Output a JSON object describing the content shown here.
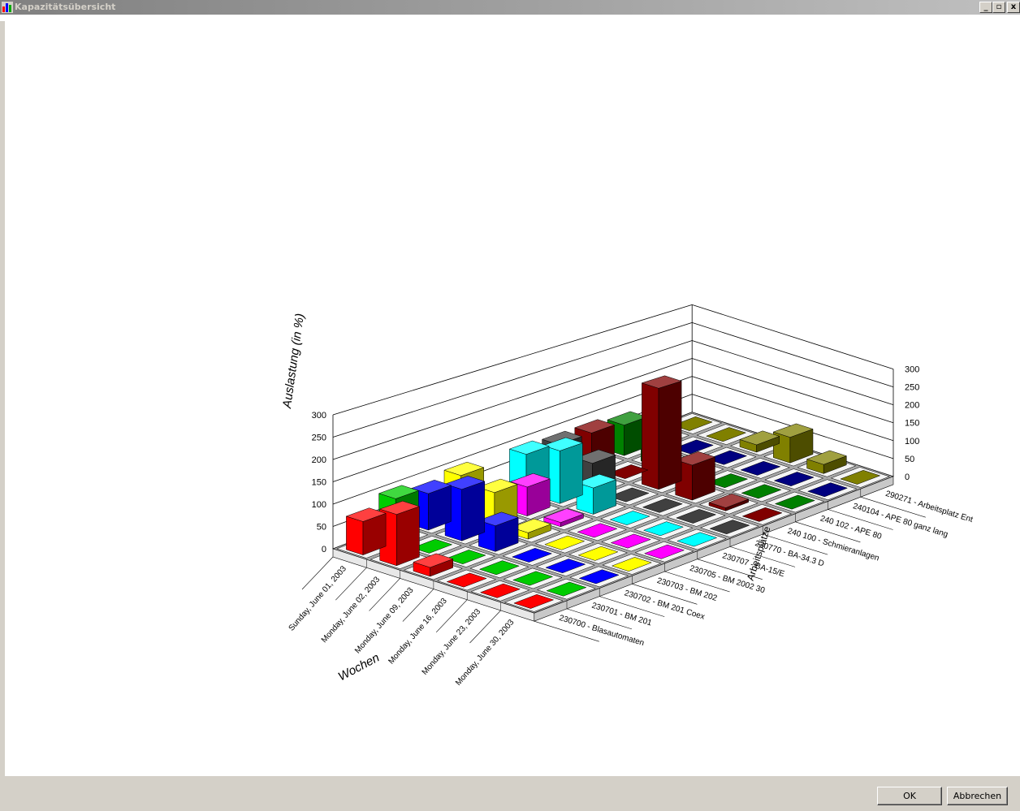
{
  "window": {
    "title": "Kapazitätsübersicht",
    "controls": [
      "_",
      "▫",
      "x"
    ]
  },
  "buttons": {
    "ok_label": "OK",
    "cancel_label": "Abbrechen"
  },
  "chart_data": {
    "type": "bar3d",
    "ylabel": "Auslastung (in %)",
    "xlabel": "Wochen",
    "zlabel": "Arbeitsplätze",
    "ylim": [
      0,
      300
    ],
    "yticks": [
      0,
      50,
      100,
      150,
      200,
      250,
      300
    ],
    "grid": true,
    "weeks": [
      "Sunday, June 01, 2003",
      "Monday, June 02, 2003",
      "Monday, June 09, 2003",
      "Monday, June 16, 2003",
      "Monday, June 23, 2003",
      "Monday, June 30, 2003"
    ],
    "series": [
      {
        "name": "230700 - Blasautomaten",
        "color": "#ff0000",
        "values": [
          75,
          115,
          20,
          0,
          0,
          0
        ]
      },
      {
        "name": "230701 - BM 201",
        "color": "#00cc00",
        "values": [
          100,
          0,
          0,
          0,
          0,
          0
        ]
      },
      {
        "name": "230702 - BM 201 Coex",
        "color": "#0000ff",
        "values": [
          85,
          120,
          60,
          0,
          0,
          0
        ]
      },
      {
        "name": "230703 - BM 202",
        "color": "#ffff00",
        "values": [
          100,
          85,
          15,
          0,
          0,
          0
        ]
      },
      {
        "name": "230705 - BM 2002 30",
        "color": "#ff00ff",
        "values": [
          0,
          70,
          10,
          0,
          0,
          0
        ]
      },
      {
        "name": "230707 - BA-15/E",
        "color": "#00ffff",
        "values": [
          95,
          130,
          65,
          0,
          0,
          0
        ]
      },
      {
        "name": "230770 - BA-34.3 D",
        "color": "#404040",
        "values": [
          90,
          70,
          0,
          0,
          0,
          0
        ]
      },
      {
        "name": "240 100 - Schmieranlagen",
        "color": "#800000",
        "values": [
          90,
          0,
          260,
          90,
          8,
          0
        ]
      },
      {
        "name": "240 102 - APE 80",
        "color": "#008000",
        "values": [
          80,
          40,
          0,
          0,
          0,
          0
        ]
      },
      {
        "name": "240104 - APE 80 ganz lang",
        "color": "#000080",
        "values": [
          0,
          0,
          0,
          0,
          0,
          0
        ]
      },
      {
        "name": "290271 - Arbeitsplatz Ent",
        "color": "#808000",
        "values": [
          0,
          0,
          20,
          70,
          25,
          0
        ]
      }
    ]
  }
}
